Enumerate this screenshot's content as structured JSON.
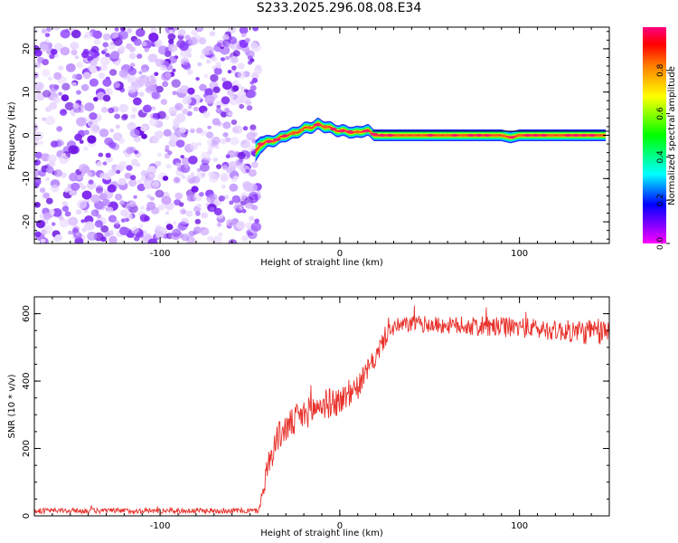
{
  "title": "S233.2025.296.08.08.E34",
  "colors": {
    "line": "#e8302a",
    "axis": "#000000"
  },
  "chart_data": [
    {
      "type": "heatmap",
      "title": "S233.2025.296.08.08.E34",
      "xlabel": "Height of straight line (km)",
      "ylabel": "Frequency (Hz)",
      "xlim": [
        -170,
        150
      ],
      "ylim": [
        -25,
        25
      ],
      "x_ticks": [
        -100,
        0,
        100
      ],
      "y_ticks": [
        -20,
        -10,
        0,
        10,
        20
      ],
      "noise_region_x": [
        -170,
        -47
      ],
      "ridge": {
        "x": [
          -47,
          -44,
          -40,
          -35,
          -30,
          -25,
          -20,
          -15,
          -12,
          -8,
          -4,
          0,
          4,
          8,
          12,
          16,
          20,
          30,
          50,
          80,
          90,
          95,
          100,
          110,
          120,
          130,
          140,
          148
        ],
        "frequency": [
          -4,
          -2,
          -1.5,
          -1,
          0,
          0.5,
          1.5,
          2,
          2.5,
          2,
          1.5,
          1,
          1,
          0.5,
          1,
          1,
          0,
          0,
          0,
          0,
          0,
          -0.5,
          0,
          0,
          0,
          0,
          0,
          0
        ]
      },
      "colorbar": {
        "label": "Normalized spectral amplitude",
        "range": [
          0,
          1
        ],
        "ticks": [
          "0.0",
          "0.2",
          "0.4",
          "0.6",
          "0.8"
        ]
      }
    },
    {
      "type": "line",
      "xlabel": "Height of straight line (km)",
      "ylabel": "SNR (10 * v/v)",
      "xlim": [
        -170,
        150
      ],
      "ylim": [
        0,
        650
      ],
      "x_ticks": [
        -100,
        0,
        100
      ],
      "y_ticks": [
        0,
        200,
        400,
        600
      ],
      "series": [
        {
          "name": "SNR",
          "color": "#e8302a",
          "trend_x": [
            -170,
            -45,
            -40,
            -35,
            -30,
            -20,
            -10,
            0,
            10,
            15,
            20,
            25,
            30,
            40,
            60,
            80,
            100,
            120,
            140,
            150
          ],
          "trend_y": [
            15,
            15,
            150,
            230,
            260,
            300,
            330,
            340,
            380,
            430,
            470,
            530,
            560,
            570,
            565,
            560,
            560,
            550,
            545,
            545
          ],
          "noise_amplitude": [
            8,
            8,
            40,
            45,
            45,
            45,
            45,
            45,
            35,
            30,
            30,
            30,
            25,
            25,
            25,
            30,
            30,
            30,
            40,
            40
          ]
        }
      ]
    }
  ]
}
